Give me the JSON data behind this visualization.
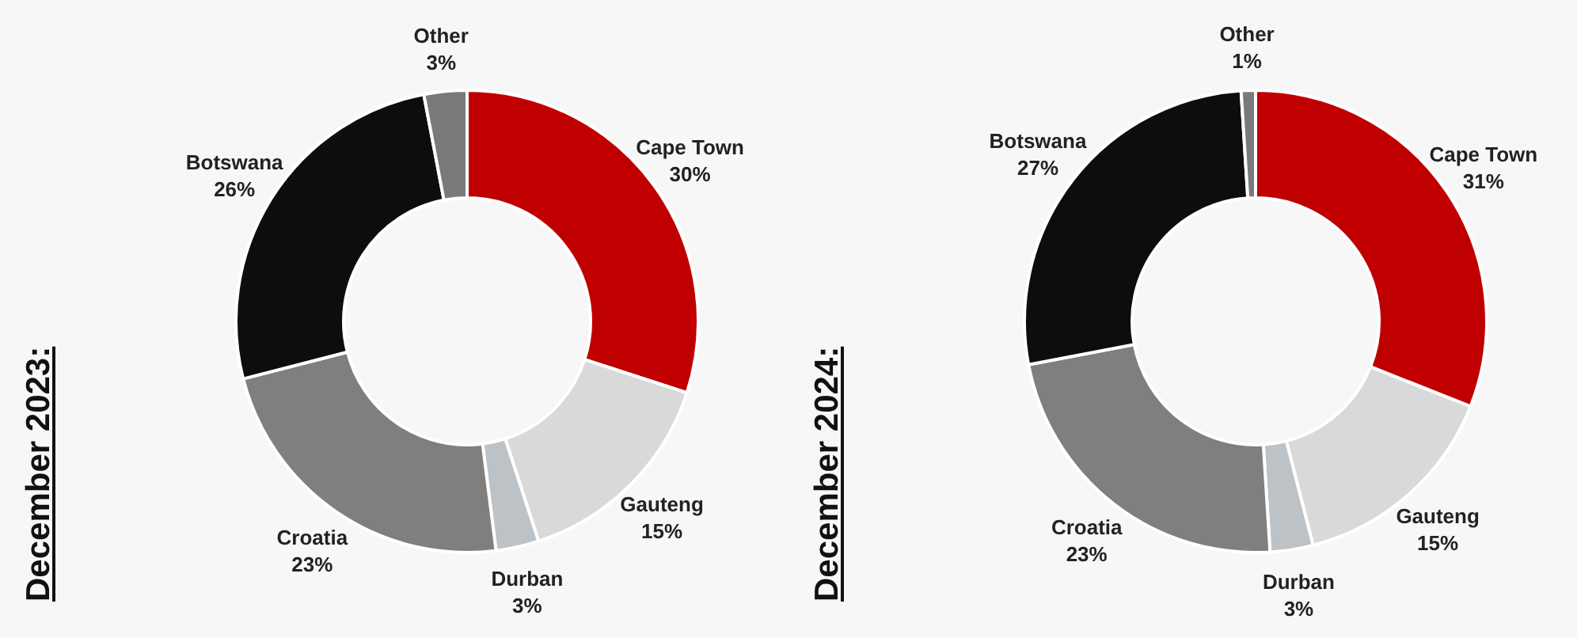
{
  "chart_data": [
    {
      "type": "donut",
      "title": "December 2023:",
      "categories": [
        "Cape Town",
        "Gauteng",
        "Durban",
        "Croatia",
        "Botswana",
        "Other"
      ],
      "values": [
        30,
        15,
        3,
        23,
        26,
        3
      ],
      "colors": [
        "#c00000",
        "#d9d9d9",
        "#bcc2c6",
        "#7f7f7f",
        "#0d0d0d",
        "#7a7a7a"
      ],
      "value_labels": [
        "30%",
        "15%",
        "3%",
        "23%",
        "26%",
        "3%"
      ],
      "legend": false
    },
    {
      "type": "donut",
      "title": "December 2024:",
      "categories": [
        "Cape Town",
        "Gauteng",
        "Durban",
        "Croatia",
        "Botswana",
        "Other"
      ],
      "values": [
        31,
        15,
        3,
        23,
        27,
        1
      ],
      "colors": [
        "#c00000",
        "#d9d9d9",
        "#bcc2c6",
        "#7f7f7f",
        "#0d0d0d",
        "#7a7a7a"
      ],
      "value_labels": [
        "31%",
        "15%",
        "3%",
        "23%",
        "27%",
        "1%"
      ],
      "legend": false
    }
  ]
}
